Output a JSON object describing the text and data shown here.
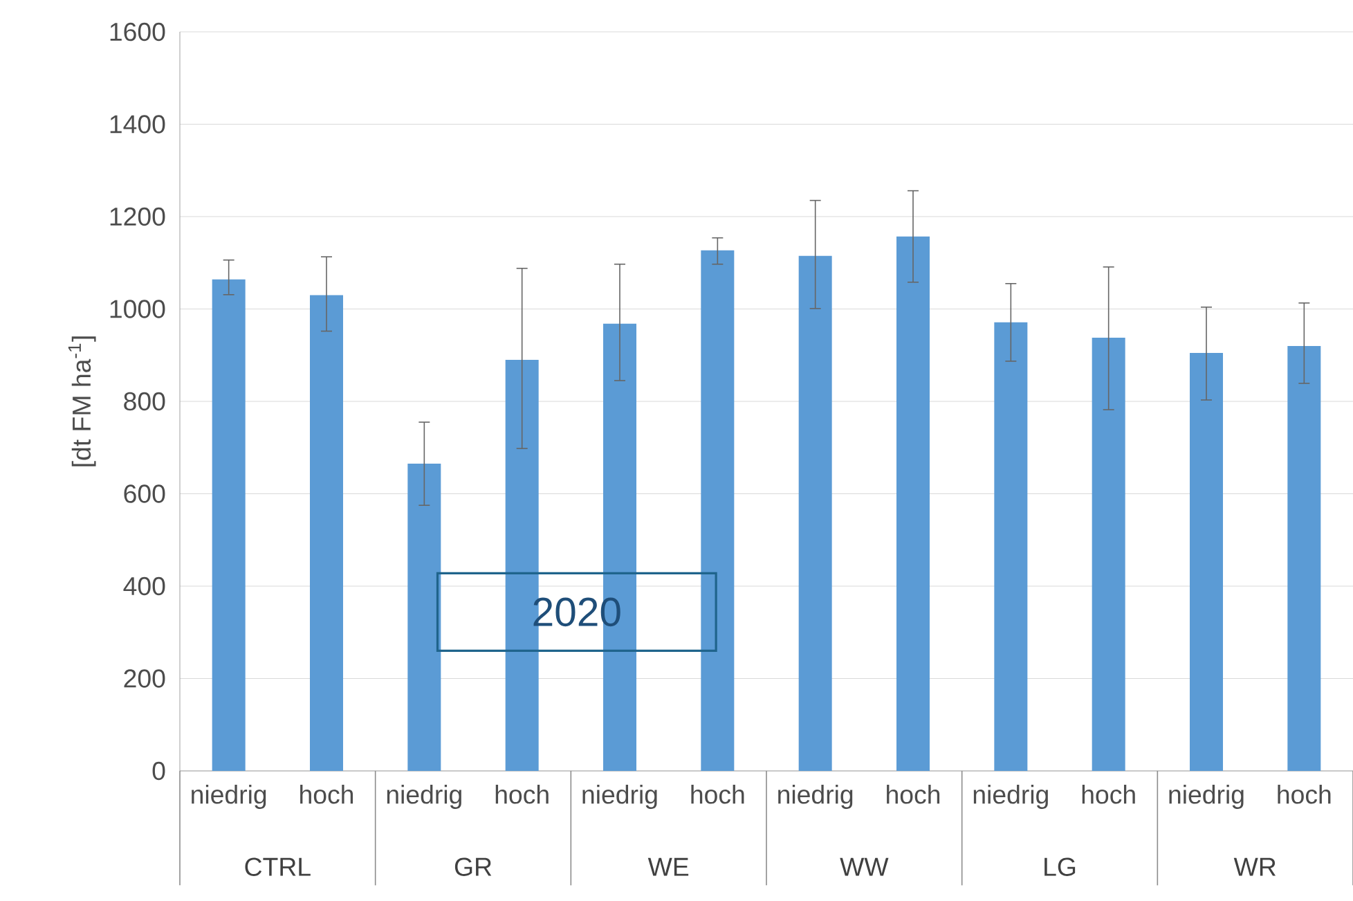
{
  "chart_data": {
    "type": "bar",
    "ylabel": "[dt FM ha$^{-1}$]",
    "categories": [
      "niedrig",
      "hoch",
      "niedrig",
      "hoch",
      "niedrig",
      "hoch",
      "niedrig",
      "hoch",
      "niedrig",
      "hoch",
      "niedrig",
      "hoch"
    ],
    "values": [
      1064,
      1030,
      665,
      890,
      968,
      1127,
      1115,
      1157,
      971,
      938,
      905,
      920
    ],
    "errors": [
      [
        1031,
        1106
      ],
      [
        952,
        1113
      ],
      [
        575,
        755
      ],
      [
        698,
        1088
      ],
      [
        845,
        1097
      ],
      [
        1097,
        1154
      ],
      [
        1001,
        1235
      ],
      [
        1058,
        1256
      ],
      [
        887,
        1055
      ],
      [
        782,
        1091
      ],
      [
        803,
        1004
      ],
      [
        839,
        1013
      ]
    ],
    "color": "#5b9bd5",
    "ylim": [
      0,
      1600
    ],
    "yticks": [
      0,
      200,
      400,
      600,
      800,
      1000,
      1200,
      1400,
      1600
    ],
    "grid": "y",
    "annotations": [
      "CTRL",
      "GR",
      "WE",
      "WW",
      "LG",
      "WR",
      "2020"
    ]
  }
}
